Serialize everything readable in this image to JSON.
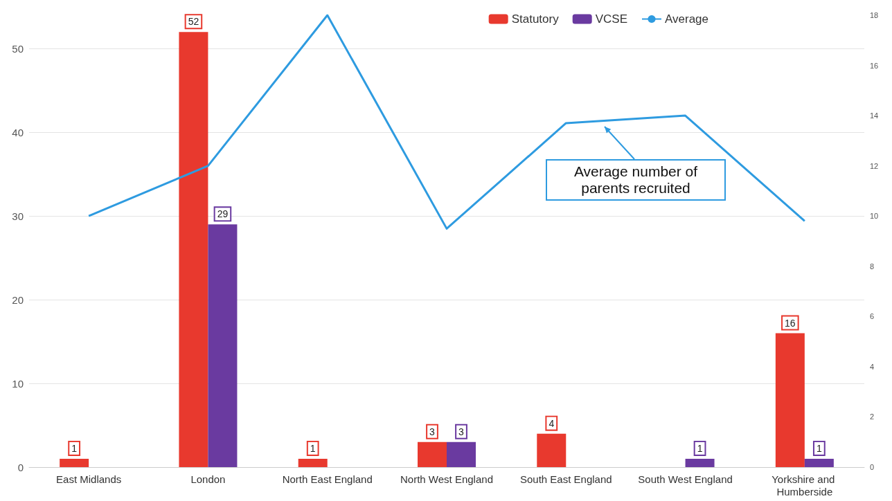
{
  "chart_data": {
    "type": "bar",
    "categories": [
      "East Midlands",
      "London",
      "North East England",
      "North West England",
      "South East England",
      "South West England",
      "Yorkshire and Humberside"
    ],
    "series": [
      {
        "name": "Statutory",
        "color": "#e8392e",
        "values": [
          1,
          52,
          1,
          3,
          4,
          null,
          16
        ],
        "value_labels": [
          "1",
          "52",
          "1",
          "3",
          "4",
          null,
          "16"
        ]
      },
      {
        "name": "VCSE",
        "color": "#6a3aa0",
        "values": [
          null,
          29,
          null,
          3,
          null,
          1,
          1
        ],
        "value_labels": [
          null,
          "29",
          null,
          "3",
          null,
          "1",
          "1"
        ]
      },
      {
        "name": "Average",
        "type": "line",
        "axis": "y2",
        "color": "#2e9be0",
        "values": [
          10,
          12,
          18,
          9.5,
          13.7,
          14,
          9.8
        ]
      }
    ],
    "ylim": [
      0,
      54
    ],
    "yticks": [
      0,
      10,
      20,
      30,
      40,
      50
    ],
    "y2lim": [
      0,
      18
    ],
    "y2ticks": [
      0,
      2,
      4,
      6,
      8,
      10,
      12,
      14,
      16,
      18
    ],
    "grid": "y",
    "legend": "top right",
    "marker": "none",
    "annotations": [
      "Average number of\nparents recruited"
    ]
  }
}
